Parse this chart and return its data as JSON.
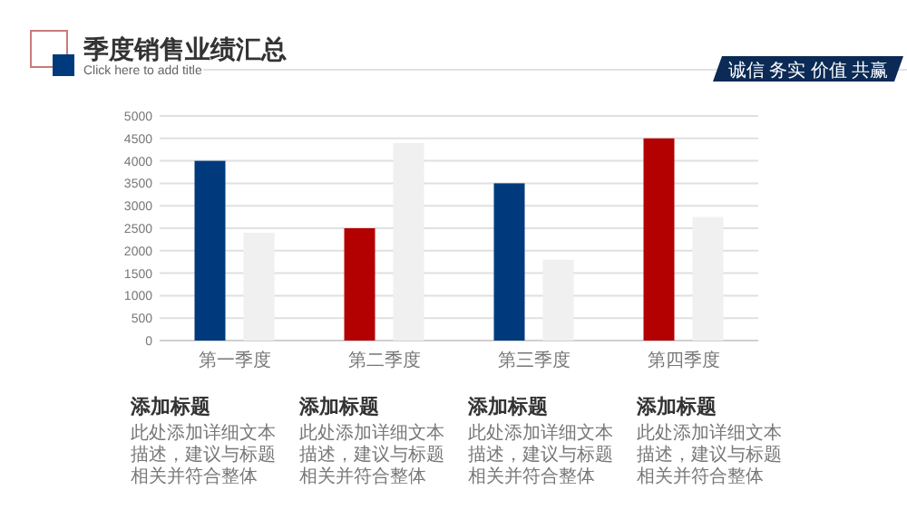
{
  "chart_data": {
    "type": "bar",
    "title": "季度销售业绩汇总",
    "subtitle": "Click here to add title",
    "categories": [
      "第一季度",
      "第二季度",
      "第三季度",
      "第四季度"
    ],
    "series": [
      {
        "colors": [
          "#003a7d",
          "#b30000",
          "#003a7d",
          "#b30000"
        ],
        "values": [
          4000,
          2500,
          3500,
          4500
        ]
      },
      {
        "color": "#f0f0f0",
        "values": [
          2400,
          4400,
          1800,
          2750
        ]
      }
    ],
    "ylim": [
      0,
      5000
    ],
    "yticks": [
      0,
      500,
      1000,
      1500,
      2000,
      2500,
      3000,
      3500,
      4000,
      4500,
      5000
    ],
    "grid": "y",
    "annotations": [
      "诚信 务实 价值 共赢",
      "添加标题",
      "此处添加详细文本描述，建议与标题相关并符合整体",
      "添加标题",
      "此处添加详细文本描述，建议与标题相关并符合整体",
      "添加标题",
      "此处添加详细文本描述，建议与标题相关并符合整体",
      "添加标题",
      "此处添加详细文本描述，建议与标题相关并符合整体"
    ]
  }
}
